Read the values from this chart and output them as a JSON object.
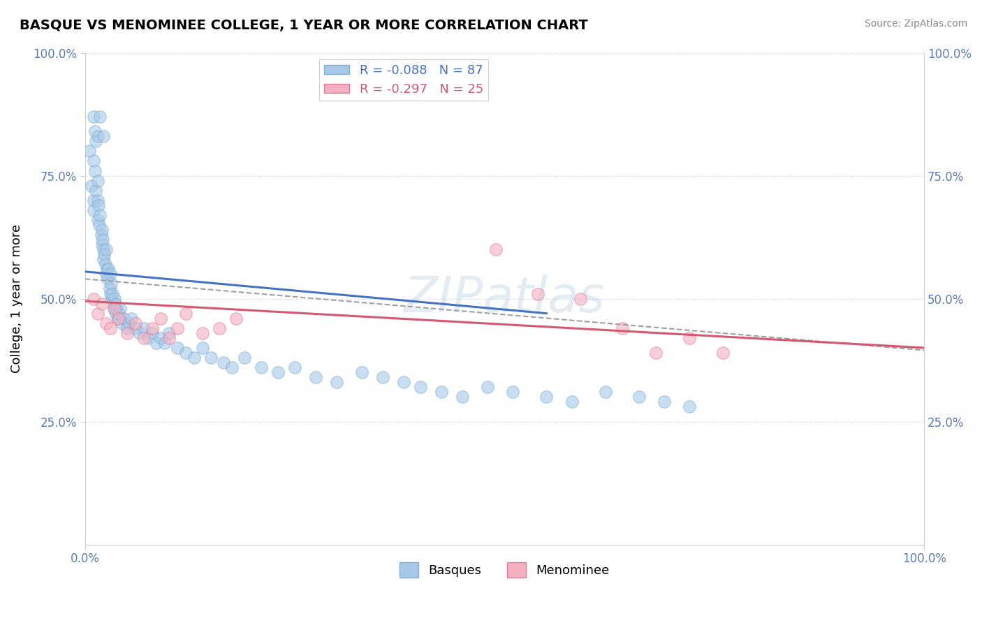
{
  "title": "BASQUE VS MENOMINEE COLLEGE, 1 YEAR OR MORE CORRELATION CHART",
  "source_text": "Source: ZipAtlas.com",
  "ylabel": "College, 1 year or more",
  "xlim": [
    0.0,
    1.0
  ],
  "ylim": [
    0.0,
    1.0
  ],
  "y_tick_vals": [
    0.25,
    0.5,
    0.75,
    1.0
  ],
  "y_tick_labels": [
    "25.0%",
    "50.0%",
    "75.0%",
    "100.0%"
  ],
  "x_tick_labels_left": "0.0%",
  "x_tick_labels_right": "100.0%",
  "basque_color": "#a8c8e8",
  "basque_edge_color": "#7aaed4",
  "menominee_color": "#f4b0c0",
  "menominee_edge_color": "#e07898",
  "trend_blue": "#4472c4",
  "trend_pink": "#d45870",
  "trend_gray": "#a0a0a0",
  "watermark": "ZIPatlas",
  "legend_label_blue": "R = -0.088   N = 87",
  "legend_label_pink": "R = -0.297   N = 25",
  "legend_text_blue": "#4472c4",
  "legend_text_pink": "#d45870",
  "bottom_legend_blue": "Basques",
  "bottom_legend_pink": "Menominee",
  "blue_line_x0": 0.0,
  "blue_line_y0": 0.555,
  "blue_line_x1": 0.55,
  "blue_line_y1": 0.47,
  "pink_line_x0": 0.0,
  "pink_line_y0": 0.495,
  "pink_line_x1": 1.0,
  "pink_line_y1": 0.4,
  "gray_line_x0": 0.0,
  "gray_line_y0": 0.54,
  "gray_line_x1": 1.0,
  "gray_line_y1": 0.395,
  "basque_points_x": [
    0.005,
    0.008,
    0.01,
    0.01,
    0.01,
    0.012,
    0.013,
    0.015,
    0.015,
    0.015,
    0.016,
    0.017,
    0.018,
    0.019,
    0.02,
    0.02,
    0.021,
    0.022,
    0.022,
    0.023,
    0.024,
    0.025,
    0.025,
    0.026,
    0.027,
    0.028,
    0.029,
    0.03,
    0.03,
    0.031,
    0.032,
    0.033,
    0.034,
    0.035,
    0.036,
    0.037,
    0.038,
    0.039,
    0.04,
    0.042,
    0.044,
    0.046,
    0.05,
    0.053,
    0.055,
    0.06,
    0.065,
    0.07,
    0.075,
    0.08,
    0.085,
    0.09,
    0.095,
    0.1,
    0.11,
    0.12,
    0.13,
    0.14,
    0.15,
    0.165,
    0.175,
    0.19,
    0.21,
    0.23,
    0.25,
    0.275,
    0.3,
    0.33,
    0.355,
    0.38,
    0.4,
    0.425,
    0.45,
    0.48,
    0.51,
    0.55,
    0.58,
    0.62,
    0.66,
    0.69,
    0.72,
    0.01,
    0.012,
    0.013,
    0.015,
    0.018,
    0.022
  ],
  "basque_points_y": [
    0.8,
    0.73,
    0.78,
    0.7,
    0.68,
    0.76,
    0.72,
    0.74,
    0.7,
    0.66,
    0.69,
    0.65,
    0.67,
    0.63,
    0.64,
    0.61,
    0.62,
    0.6,
    0.58,
    0.59,
    0.57,
    0.6,
    0.55,
    0.56,
    0.54,
    0.56,
    0.52,
    0.55,
    0.51,
    0.53,
    0.5,
    0.51,
    0.48,
    0.5,
    0.49,
    0.47,
    0.48,
    0.46,
    0.47,
    0.48,
    0.45,
    0.46,
    0.44,
    0.45,
    0.46,
    0.44,
    0.43,
    0.44,
    0.42,
    0.43,
    0.41,
    0.42,
    0.41,
    0.43,
    0.4,
    0.39,
    0.38,
    0.4,
    0.38,
    0.37,
    0.36,
    0.38,
    0.36,
    0.35,
    0.36,
    0.34,
    0.33,
    0.35,
    0.34,
    0.33,
    0.32,
    0.31,
    0.3,
    0.32,
    0.31,
    0.3,
    0.29,
    0.31,
    0.3,
    0.29,
    0.28,
    0.87,
    0.84,
    0.82,
    0.83,
    0.87,
    0.83
  ],
  "menominee_points_x": [
    0.01,
    0.015,
    0.02,
    0.025,
    0.03,
    0.035,
    0.04,
    0.05,
    0.06,
    0.07,
    0.08,
    0.09,
    0.1,
    0.11,
    0.12,
    0.14,
    0.16,
    0.18,
    0.49,
    0.54,
    0.59,
    0.64,
    0.68,
    0.72,
    0.76
  ],
  "menominee_points_y": [
    0.5,
    0.47,
    0.49,
    0.45,
    0.44,
    0.48,
    0.46,
    0.43,
    0.45,
    0.42,
    0.44,
    0.46,
    0.42,
    0.44,
    0.47,
    0.43,
    0.44,
    0.46,
    0.6,
    0.51,
    0.5,
    0.44,
    0.39,
    0.42,
    0.39
  ]
}
